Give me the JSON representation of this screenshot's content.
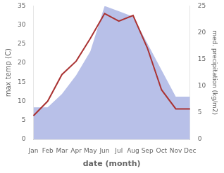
{
  "chart_data": {
    "type": "line",
    "xlabel": "date (month)",
    "ylabel": "max temp (C)",
    "y2label": "med. precipitation (kg/m2)",
    "categories": [
      "Jan",
      "Feb",
      "Mar",
      "Apr",
      "May",
      "Jun",
      "Jul",
      "Aug",
      "Sep",
      "Oct",
      "Nov",
      "Dec"
    ],
    "series": [
      {
        "type": "line",
        "color": "#aa3333",
        "values": [
          6.2,
          10.0,
          17.0,
          20.5,
          26.5,
          33.0,
          31.0,
          32.5,
          24.0,
          13.0,
          8.0,
          8.0
        ]
      },
      {
        "type": "area",
        "color": "#b8c0e8",
        "axis": "y2",
        "values": [
          6.0,
          6.0,
          8.5,
          12.0,
          16.5,
          25.0,
          24.0,
          23.0,
          18.0,
          13.0,
          8.0,
          8.0
        ]
      }
    ],
    "ylim": [
      0,
      35
    ],
    "yticks": [
      0,
      5,
      10,
      15,
      20,
      25,
      30,
      35
    ],
    "y2lim": [
      0,
      25
    ],
    "y2ticks": [
      0,
      5,
      10,
      15,
      20,
      25
    ],
    "grid": false
  }
}
